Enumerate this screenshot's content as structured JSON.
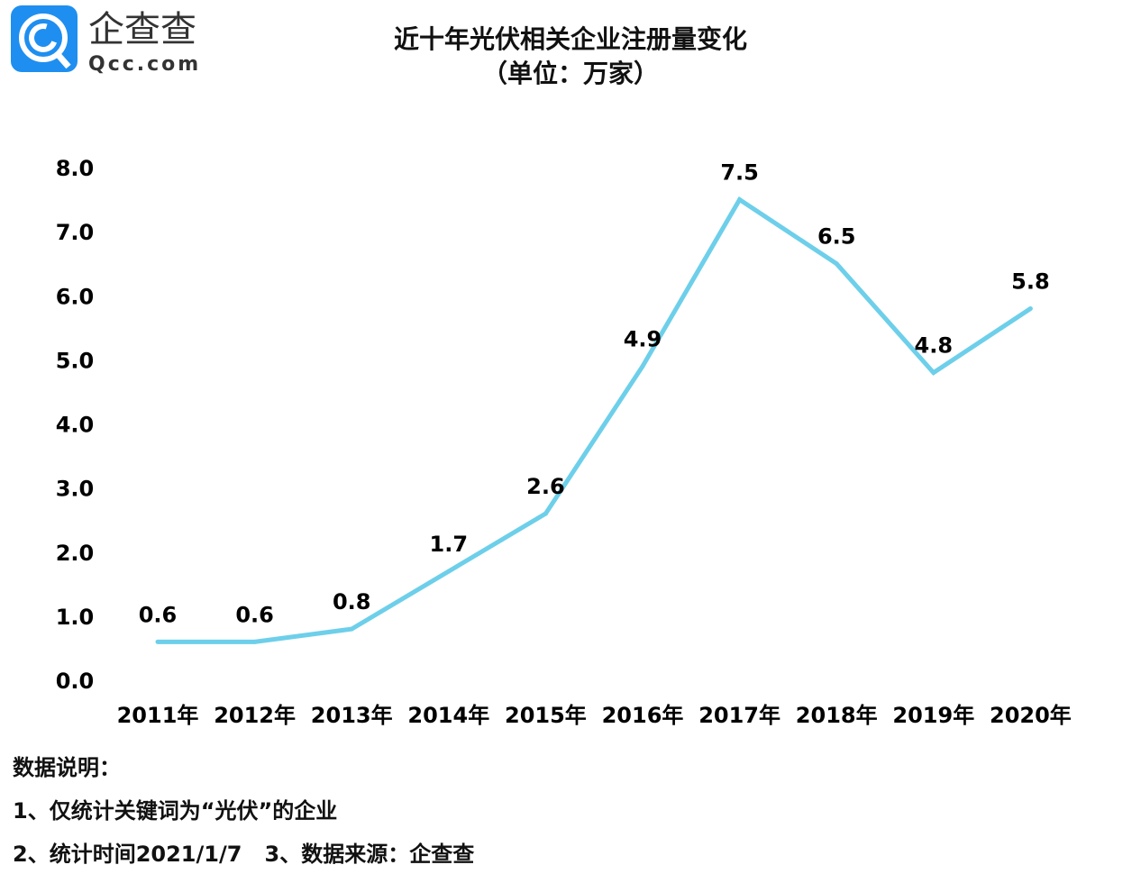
{
  "logo": {
    "brand_cn": "企查查",
    "brand_en": "Qcc.com",
    "color": "#1e8ff0"
  },
  "chart_data": {
    "type": "line",
    "title": "近十年光伏相关企业注册量变化",
    "subtitle": "（单位：万家）",
    "categories": [
      "2011年",
      "2012年",
      "2013年",
      "2014年",
      "2015年",
      "2016年",
      "2017年",
      "2018年",
      "2019年",
      "2020年"
    ],
    "values": [
      0.6,
      0.6,
      0.8,
      1.7,
      2.6,
      4.9,
      7.5,
      6.5,
      4.8,
      5.8
    ],
    "data_labels": [
      "0.6",
      "0.6",
      "0.8",
      "1.7",
      "2.6",
      "4.9",
      "7.5",
      "6.5",
      "4.8",
      "5.8"
    ],
    "y_ticks": [
      "0.0",
      "1.0",
      "2.0",
      "3.0",
      "4.0",
      "5.0",
      "6.0",
      "7.0",
      "8.0"
    ],
    "ylim": [
      0,
      8
    ],
    "grid": false,
    "line_color": "#6dcfea"
  },
  "notes": {
    "heading": "数据说明：",
    "line1": "1、仅统计关键词为“光伏”的企业",
    "line2": "2、统计时间2021/1/7   3、数据来源：企查查"
  }
}
